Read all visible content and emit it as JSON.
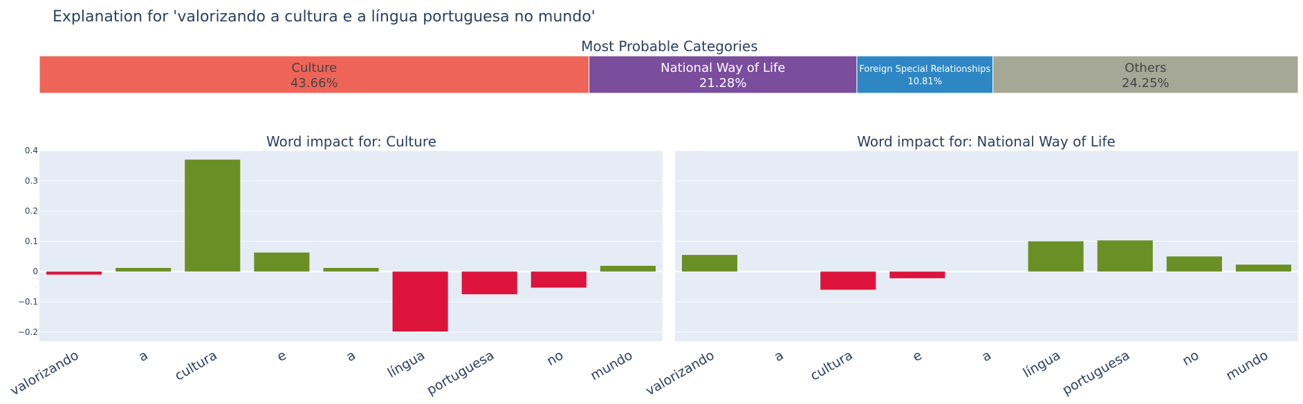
{
  "title": "Explanation for 'valorizando a cultura e a língua portuguesa no mundo'",
  "chart_data": [
    {
      "type": "bar",
      "orientation": "horizontal-stacked",
      "title": "Most Probable Categories",
      "segments": [
        {
          "name": "Culture",
          "value": 43.66,
          "label": "43.66%",
          "color": "#ef6459"
        },
        {
          "name": "National Way of Life",
          "value": 21.28,
          "label": "21.28%",
          "color": "#7a4d9d"
        },
        {
          "name": "Foreign Special Relationships",
          "value": 10.81,
          "label": "10.81%",
          "color": "#2e87c4"
        },
        {
          "name": "Others",
          "value": 24.25,
          "label": "24.25%",
          "color": "#a5a896"
        }
      ]
    },
    {
      "type": "bar",
      "title": "Word impact for: Culture",
      "categories": [
        "valorizando",
        "a",
        "cultura",
        "e",
        "a",
        "língua",
        "portuguesa",
        "no",
        "mundo"
      ],
      "values": [
        -0.01,
        0.012,
        0.37,
        0.063,
        0.012,
        -0.198,
        -0.075,
        -0.053,
        0.019
      ],
      "ylim": [
        -0.23,
        0.4
      ],
      "yticks": [
        0.4,
        0.3,
        0.2,
        0.1,
        0,
        -0.1,
        -0.2
      ],
      "ytick_labels": [
        "0.4",
        "0.3",
        "0.2",
        "0.1",
        "0",
        "−0.1",
        "−0.2"
      ],
      "positive_color": "#6a8f24",
      "negative_color": "#dc143c",
      "grid": true
    },
    {
      "type": "bar",
      "title": "Word impact for: National Way of Life",
      "categories": [
        "valorizando",
        "a",
        "cultura",
        "e",
        "a",
        "língua",
        "portuguesa",
        "no",
        "mundo"
      ],
      "values": [
        0.055,
        0,
        -0.06,
        -0.022,
        0,
        0.1,
        0.103,
        0.05,
        0.023
      ],
      "ylim": [
        -0.23,
        0.4
      ],
      "positive_color": "#6a8f24",
      "negative_color": "#dc143c",
      "grid": true
    }
  ]
}
